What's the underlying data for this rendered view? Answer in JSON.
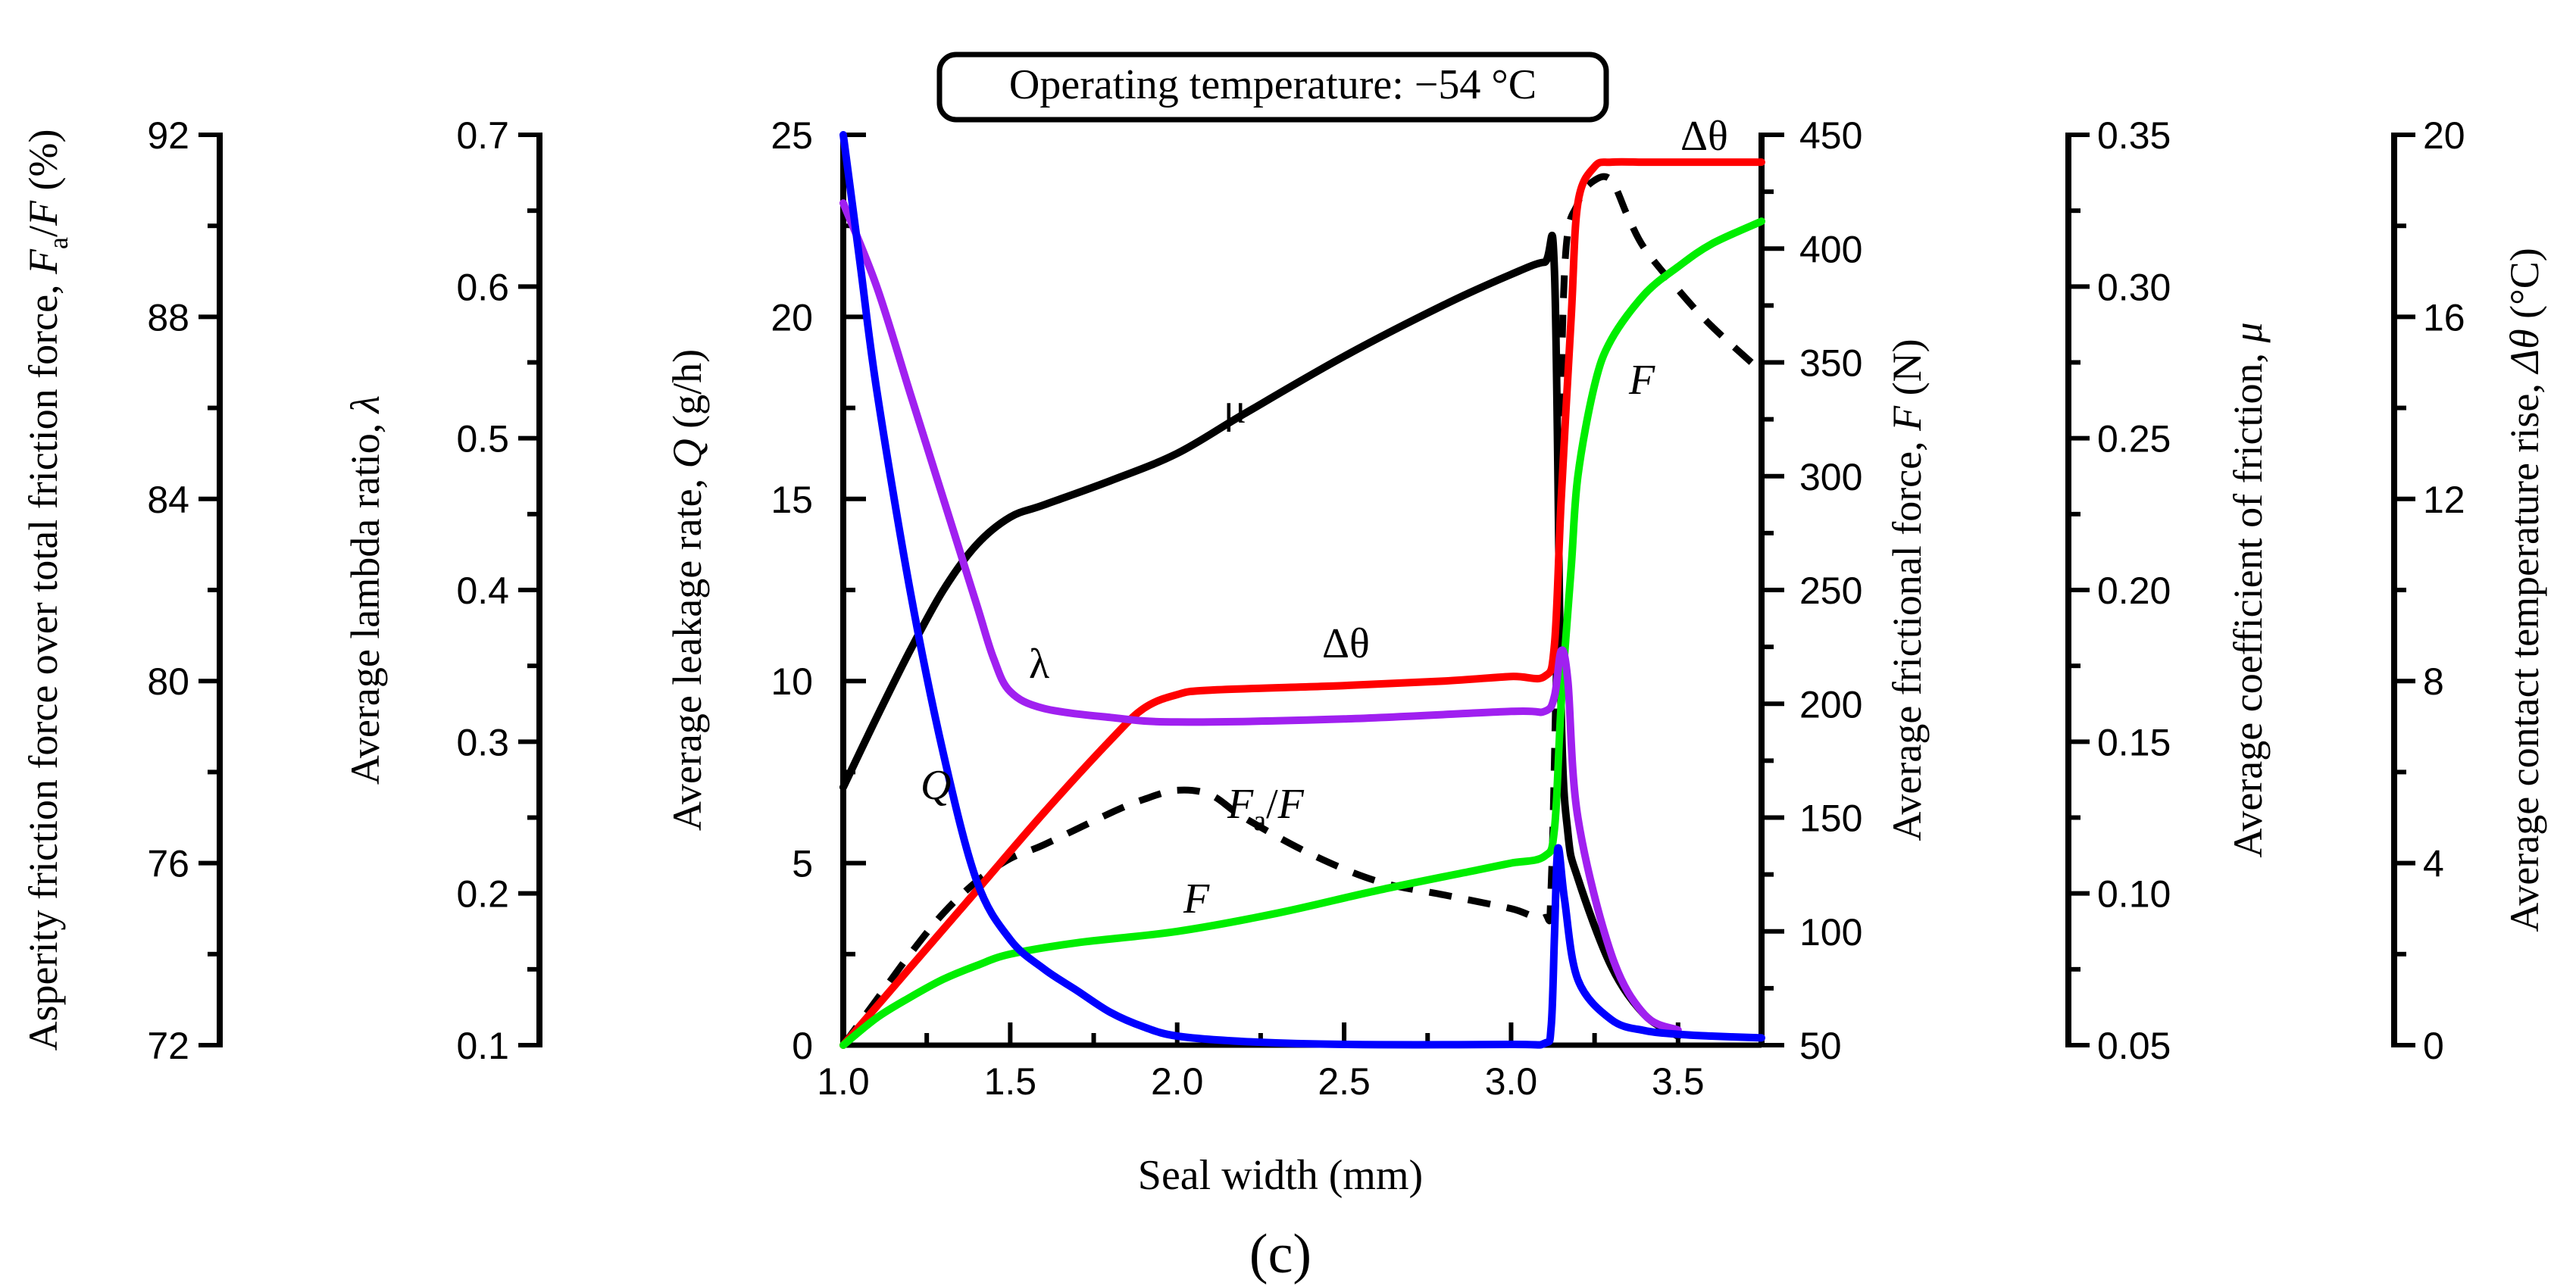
{
  "figure_label": "(c)",
  "chart_data": {
    "type": "line",
    "title": "Operating temperature: −54 °C",
    "xlabel": "Seal width (mm)",
    "xlim": [
      1.0,
      3.75
    ],
    "xticks": [
      "1.0",
      "1.5",
      "2.0",
      "2.5",
      "3.0",
      "3.5"
    ],
    "axes": [
      {
        "id": "fa",
        "label_pre": "Asperity friction force over total friction force, ",
        "label_var": "F",
        "label_sub": "a",
        "label_mid": "/",
        "label_var2": "F",
        "label_post": " (%)",
        "range": [
          72,
          92
        ],
        "ticks": [
          "72",
          "76",
          "80",
          "84",
          "88",
          "92"
        ]
      },
      {
        "id": "lambda",
        "label_pre": "Average lambda ratio, ",
        "label_var": "λ",
        "range": [
          0.1,
          0.7
        ],
        "ticks": [
          "0.1",
          "0.2",
          "0.3",
          "0.4",
          "0.5",
          "0.6",
          "0.7"
        ]
      },
      {
        "id": "q",
        "label_pre": "Average leakage rate, ",
        "label_var": "Q",
        "label_post": " (g/h)",
        "range": [
          0,
          25
        ],
        "ticks": [
          "0",
          "5",
          "10",
          "15",
          "20",
          "25"
        ]
      },
      {
        "id": "f",
        "label_pre": "Average frictional force, ",
        "label_var": "F",
        "label_post": " (N)",
        "range": [
          50,
          450
        ],
        "ticks": [
          "50",
          "100",
          "150",
          "200",
          "250",
          "300",
          "350",
          "400",
          "450"
        ]
      },
      {
        "id": "mu",
        "label_pre": "Average coefficient of friction, ",
        "label_var": "μ",
        "range": [
          0.05,
          0.35
        ],
        "ticks": [
          "0.05",
          "0.10",
          "0.15",
          "0.20",
          "0.25",
          "0.30",
          "0.35"
        ]
      },
      {
        "id": "dtheta",
        "label_pre": "Average contact temperature rise, ",
        "label_var": "Δθ",
        "label_post": " (°C)",
        "range": [
          0,
          20
        ],
        "ticks": [
          "0",
          "4",
          "8",
          "12",
          "16",
          "20"
        ]
      }
    ],
    "series": [
      {
        "name": "Q",
        "label": "Q",
        "axis": "q",
        "color": "#0000ff",
        "dash": false,
        "x": [
          1.0,
          1.05,
          1.1,
          1.2,
          1.3,
          1.4,
          1.5,
          1.6,
          1.7,
          1.8,
          1.9,
          2.0,
          2.2,
          2.5,
          3.0,
          3.1,
          3.12,
          3.13,
          3.14,
          3.16,
          3.2,
          3.3,
          3.4,
          3.5,
          3.6,
          3.75
        ],
        "y": [
          25.0,
          21.5,
          18.0,
          12.5,
          8.0,
          4.5,
          2.9,
          2.1,
          1.5,
          0.9,
          0.5,
          0.25,
          0.1,
          0.02,
          0.02,
          0.05,
          0.5,
          3.0,
          5.4,
          4.0,
          1.8,
          0.7,
          0.4,
          0.3,
          0.25,
          0.2
        ]
      },
      {
        "name": "lambda",
        "label": "λ",
        "axis": "lambda",
        "color": "#a020f0",
        "dash": false,
        "x": [
          1.0,
          1.1,
          1.2,
          1.3,
          1.4,
          1.45,
          1.5,
          1.6,
          1.8,
          2.0,
          2.5,
          3.0,
          3.1,
          3.13,
          3.15,
          3.17,
          3.2,
          3.3,
          3.4,
          3.5
        ],
        "y": [
          0.655,
          0.6,
          0.53,
          0.46,
          0.39,
          0.355,
          0.333,
          0.322,
          0.316,
          0.313,
          0.315,
          0.32,
          0.32,
          0.33,
          0.36,
          0.34,
          0.25,
          0.16,
          0.12,
          0.11
        ]
      },
      {
        "name": "mu",
        "label": "μ",
        "axis": "mu",
        "color": "#000000",
        "dash": false,
        "x": [
          1.0,
          1.1,
          1.2,
          1.3,
          1.4,
          1.5,
          1.6,
          1.8,
          2.0,
          2.2,
          2.5,
          2.8,
          3.0,
          3.1,
          3.13,
          3.15,
          3.17,
          3.2,
          3.3,
          3.4,
          3.5
        ],
        "y": [
          0.135,
          0.158,
          0.18,
          0.2,
          0.215,
          0.224,
          0.228,
          0.236,
          0.245,
          0.258,
          0.277,
          0.294,
          0.304,
          0.308,
          0.305,
          0.16,
          0.12,
          0.105,
          0.076,
          0.06,
          0.053
        ]
      },
      {
        "name": "F",
        "label": "F",
        "axis": "f",
        "color": "#00ee00",
        "dash": false,
        "x": [
          1.0,
          1.1,
          1.2,
          1.3,
          1.4,
          1.5,
          1.7,
          2.0,
          2.3,
          2.6,
          2.9,
          3.0,
          3.1,
          3.13,
          3.15,
          3.18,
          3.2,
          3.25,
          3.3,
          3.4,
          3.5,
          3.6,
          3.75
        ],
        "y": [
          50,
          62,
          71,
          79,
          85,
          90,
          95,
          100,
          108,
          118,
          127,
          130,
          133,
          145,
          200,
          260,
          300,
          340,
          360,
          380,
          392,
          402,
          412
        ]
      },
      {
        "name": "dtheta",
        "label": "Δθ",
        "axis": "dtheta",
        "color": "#ff0000",
        "dash": false,
        "x": [
          1.0,
          1.2,
          1.4,
          1.6,
          1.8,
          1.9,
          2.0,
          2.1,
          2.5,
          2.8,
          3.0,
          3.1,
          3.13,
          3.15,
          3.18,
          3.2,
          3.25,
          3.3,
          3.4,
          3.5,
          3.75
        ],
        "y": [
          0.0,
          1.7,
          3.4,
          5.1,
          6.7,
          7.4,
          7.7,
          7.8,
          7.9,
          8.0,
          8.1,
          8.1,
          8.8,
          12.0,
          16.0,
          18.5,
          19.3,
          19.4,
          19.4,
          19.4,
          19.4
        ]
      },
      {
        "name": "Fa/F",
        "label": "Fa/F",
        "axis": "fa",
        "color": "#000000",
        "dash": true,
        "x": [
          1.0,
          1.1,
          1.2,
          1.3,
          1.4,
          1.5,
          1.6,
          1.8,
          1.9,
          2.0,
          2.1,
          2.2,
          2.4,
          2.6,
          2.8,
          3.0,
          3.1,
          3.12,
          3.14,
          3.16,
          3.2,
          3.25,
          3.3,
          3.35,
          3.4,
          3.5,
          3.6,
          3.75
        ],
        "y": [
          72.0,
          73.0,
          74.0,
          74.9,
          75.6,
          76.1,
          76.4,
          77.1,
          77.4,
          77.6,
          77.5,
          77.0,
          76.2,
          75.6,
          75.3,
          75.0,
          74.8,
          75.5,
          82.0,
          89.0,
          90.5,
          91.0,
          91.0,
          90.2,
          89.5,
          88.6,
          87.8,
          86.8
        ]
      }
    ]
  }
}
